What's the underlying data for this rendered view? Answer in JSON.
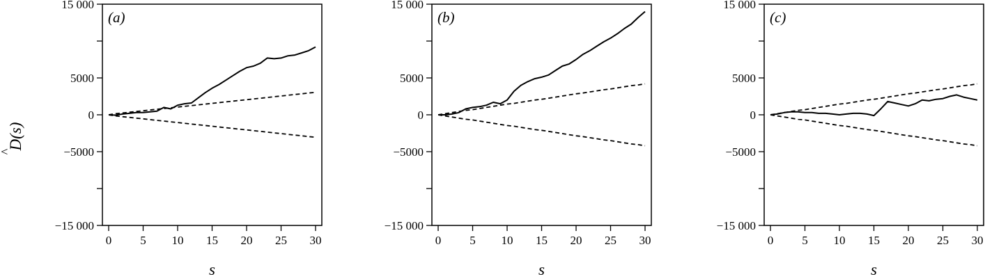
{
  "figure": {
    "ylabel_hat": "^",
    "ylabel": "D(s)",
    "xlabel": "s"
  },
  "chart_data": [
    {
      "type": "line",
      "panel_label": "(a)",
      "xlabel": "s",
      "ylabel": "D(s)",
      "xlim": [
        0,
        30
      ],
      "ylim": [
        -15000,
        15000
      ],
      "x_ticks": [
        0,
        5,
        10,
        15,
        20,
        25,
        30
      ],
      "x_tick_labels": [
        "0",
        "5",
        "10",
        "15",
        "20",
        "25",
        "30"
      ],
      "y_ticks": [
        15000,
        5000,
        0,
        -5000,
        -15000
      ],
      "y_tick_labels": [
        "15 000",
        "5000",
        "0",
        "−5000",
        "−15 000"
      ],
      "y_minor_ticks": [
        10000,
        -10000
      ],
      "grid": false,
      "x": [
        0,
        1,
        2,
        3,
        4,
        5,
        6,
        7,
        8,
        9,
        10,
        11,
        12,
        13,
        14,
        15,
        16,
        17,
        18,
        19,
        20,
        21,
        22,
        23,
        24,
        25,
        26,
        27,
        28,
        29,
        30
      ],
      "series": [
        {
          "style": "solid",
          "values": [
            0,
            -50,
            100,
            200,
            300,
            300,
            400,
            500,
            1000,
            800,
            1300,
            1500,
            1600,
            2300,
            3000,
            3600,
            4100,
            4700,
            5300,
            5900,
            6400,
            6600,
            7000,
            7700,
            7600,
            7700,
            8000,
            8100,
            8400,
            8700,
            9200
          ]
        },
        {
          "style": "dashed",
          "values": [
            0,
            150,
            250,
            350,
            450,
            550,
            650,
            750,
            850,
            950,
            1050,
            1150,
            1250,
            1350,
            1450,
            1550,
            1650,
            1750,
            1850,
            1950,
            2050,
            2150,
            2250,
            2350,
            2450,
            2550,
            2650,
            2750,
            2850,
            2950,
            3050
          ]
        },
        {
          "style": "dashed",
          "values": [
            0,
            -150,
            -250,
            -350,
            -450,
            -550,
            -650,
            -750,
            -850,
            -950,
            -1050,
            -1150,
            -1250,
            -1350,
            -1450,
            -1550,
            -1650,
            -1750,
            -1850,
            -1950,
            -2050,
            -2150,
            -2250,
            -2350,
            -2450,
            -2550,
            -2650,
            -2750,
            -2850,
            -2950,
            -3050
          ]
        }
      ]
    },
    {
      "type": "line",
      "panel_label": "(b)",
      "xlabel": "s",
      "ylabel": "",
      "xlim": [
        0,
        30
      ],
      "ylim": [
        -15000,
        15000
      ],
      "x_ticks": [
        0,
        5,
        10,
        15,
        20,
        25,
        30
      ],
      "x_tick_labels": [
        "0",
        "5",
        "10",
        "15",
        "20",
        "25",
        "30"
      ],
      "y_ticks": [
        15000,
        5000,
        0,
        -5000,
        -15000
      ],
      "y_tick_labels": [
        "15 000",
        "5000",
        "0",
        "−5000",
        "−15 000"
      ],
      "y_minor_ticks": [
        10000,
        -10000
      ],
      "grid": false,
      "x": [
        0,
        1,
        2,
        3,
        4,
        5,
        6,
        7,
        8,
        9,
        10,
        11,
        12,
        13,
        14,
        15,
        16,
        17,
        18,
        19,
        20,
        21,
        22,
        23,
        24,
        25,
        26,
        27,
        28,
        29,
        30
      ],
      "series": [
        {
          "style": "solid",
          "values": [
            0,
            0,
            100,
            300,
            800,
            1000,
            1100,
            1300,
            1700,
            1500,
            2000,
            3200,
            4000,
            4500,
            4900,
            5100,
            5400,
            6000,
            6600,
            6900,
            7500,
            8200,
            8700,
            9300,
            9900,
            10400,
            11000,
            11700,
            12300,
            13200,
            14000
          ]
        },
        {
          "style": "dashed",
          "values": [
            0,
            150,
            300,
            450,
            600,
            700,
            850,
            1000,
            1150,
            1300,
            1450,
            1550,
            1700,
            1850,
            2000,
            2100,
            2250,
            2400,
            2550,
            2700,
            2850,
            2950,
            3100,
            3250,
            3400,
            3500,
            3650,
            3800,
            3950,
            4050,
            4200
          ]
        },
        {
          "style": "dashed",
          "values": [
            0,
            -150,
            -300,
            -450,
            -600,
            -700,
            -850,
            -1000,
            -1150,
            -1300,
            -1450,
            -1550,
            -1700,
            -1850,
            -2000,
            -2100,
            -2250,
            -2400,
            -2550,
            -2700,
            -2850,
            -2950,
            -3100,
            -3250,
            -3400,
            -3500,
            -3650,
            -3800,
            -3950,
            -4050,
            -4200
          ]
        }
      ]
    },
    {
      "type": "line",
      "panel_label": "(c)",
      "xlabel": "s",
      "ylabel": "",
      "xlim": [
        0,
        30
      ],
      "ylim": [
        -15000,
        15000
      ],
      "x_ticks": [
        0,
        5,
        10,
        15,
        20,
        25,
        30
      ],
      "x_tick_labels": [
        "0",
        "5",
        "10",
        "15",
        "20",
        "25",
        "30"
      ],
      "y_ticks": [
        15000,
        5000,
        0,
        -5000,
        -15000
      ],
      "y_tick_labels": [
        "15 000",
        "5000",
        "0",
        "−5000",
        "−15 000"
      ],
      "y_minor_ticks": [
        10000,
        -10000
      ],
      "grid": false,
      "x": [
        0,
        1,
        2,
        3,
        4,
        5,
        6,
        7,
        8,
        9,
        10,
        11,
        12,
        13,
        14,
        15,
        16,
        17,
        18,
        19,
        20,
        21,
        22,
        23,
        24,
        25,
        26,
        27,
        28,
        29,
        30
      ],
      "series": [
        {
          "style": "solid",
          "values": [
            0,
            100,
            300,
            400,
            400,
            300,
            300,
            200,
            200,
            100,
            0,
            100,
            200,
            200,
            100,
            -100,
            800,
            1800,
            1600,
            1400,
            1200,
            1500,
            2000,
            1900,
            2100,
            2200,
            2500,
            2700,
            2400,
            2200,
            2000
          ]
        },
        {
          "style": "dashed",
          "values": [
            0,
            150,
            300,
            450,
            600,
            700,
            850,
            1000,
            1150,
            1300,
            1450,
            1550,
            1700,
            1850,
            2000,
            2100,
            2250,
            2400,
            2550,
            2700,
            2850,
            2950,
            3100,
            3250,
            3400,
            3500,
            3650,
            3800,
            3950,
            4050,
            4200
          ]
        },
        {
          "style": "dashed",
          "values": [
            0,
            -150,
            -300,
            -450,
            -600,
            -700,
            -850,
            -1000,
            -1150,
            -1300,
            -1450,
            -1550,
            -1700,
            -1850,
            -2000,
            -2100,
            -2250,
            -2400,
            -2550,
            -2700,
            -2850,
            -2950,
            -3100,
            -3250,
            -3400,
            -3500,
            -3650,
            -3800,
            -3950,
            -4050,
            -4200
          ]
        }
      ]
    }
  ]
}
